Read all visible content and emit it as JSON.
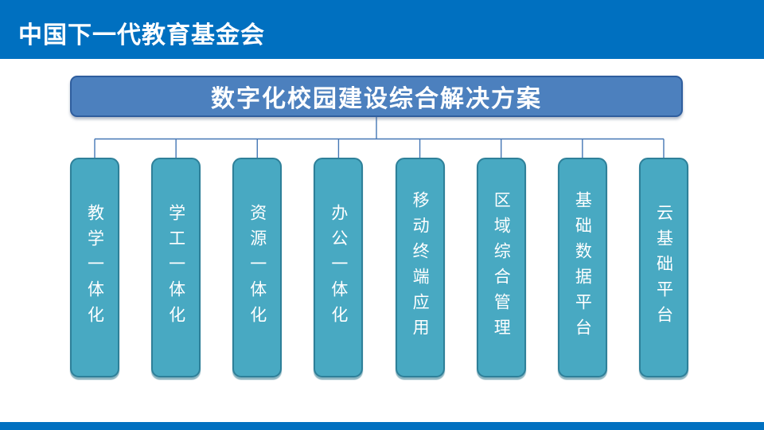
{
  "header": {
    "title": "中国下一代教育基金会",
    "bar_color": "#0070C0"
  },
  "diagram": {
    "root": {
      "label": "数字化校园建设综合解决方案",
      "fill": "#4C80BE",
      "border": "#2F5E9E"
    },
    "nodes": [
      {
        "label": "教学一体化"
      },
      {
        "label": "学工一体化"
      },
      {
        "label": "资源一体化"
      },
      {
        "label": "办公一体化"
      },
      {
        "label": "移动终端应用"
      },
      {
        "label": "区域综合管理"
      },
      {
        "label": "基础数据平台"
      },
      {
        "label": "云基础平台"
      }
    ],
    "node_fill": "#48A9C2",
    "node_border": "#2E8099",
    "connector_color": "#4577B5"
  },
  "footer": {
    "bar_color": "#0070C0"
  }
}
